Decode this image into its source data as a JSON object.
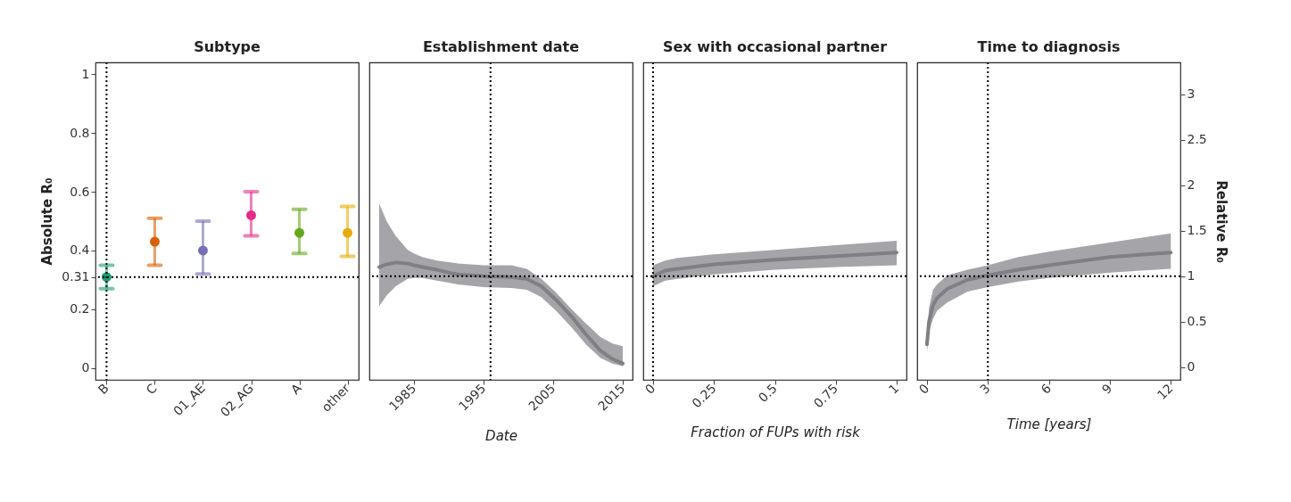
{
  "chart_data": [
    {
      "type": "scatter",
      "title": "Subtype",
      "ylabel": "Absolute R₀",
      "categories": [
        "B",
        "C",
        "01_AE",
        "02_AG",
        "A",
        "other"
      ],
      "values": [
        0.31,
        0.43,
        0.4,
        0.52,
        0.46,
        0.46
      ],
      "errors": [
        [
          0.27,
          0.35
        ],
        [
          0.35,
          0.51
        ],
        [
          0.32,
          0.5
        ],
        [
          0.45,
          0.6
        ],
        [
          0.39,
          0.54
        ],
        [
          0.38,
          0.55
        ]
      ],
      "colors": [
        "#1b9e77",
        "#d95f02",
        "#7570b3",
        "#e7298a",
        "#66a61e",
        "#e6ab02"
      ],
      "ylim": [
        -0.04,
        1.04
      ],
      "yticks": [
        0,
        0.2,
        0.31,
        0.4,
        0.6,
        0.8,
        1
      ],
      "marker": "circle",
      "ref_lines": [
        {
          "axis": "x",
          "value": "B",
          "line_style": "dotted"
        },
        {
          "axis": "y",
          "value": 0.31,
          "line_style": "dotted"
        }
      ]
    },
    {
      "type": "line",
      "title": "Establishment date",
      "xlabel": "Date",
      "x": [
        1980,
        1981.1,
        1982.4,
        1984.1,
        1985,
        1986.2,
        1988.3,
        1990.5,
        1991.3,
        1995,
        1999,
        2001.2,
        2003.3,
        2005.4,
        2007.6,
        2009.7,
        2011.8,
        2013.5,
        2015
      ],
      "series": [
        {
          "color": "#7f7f84",
          "values": [
            1.1,
            1.13,
            1.15,
            1.14,
            1.12,
            1.1,
            1.07,
            1.03,
            1.02,
            1.0,
            0.99,
            0.97,
            0.89,
            0.74,
            0.56,
            0.36,
            0.18,
            0.09,
            0.04
          ],
          "lower": [
            0.67,
            0.79,
            0.89,
            0.97,
            0.98,
            0.98,
            0.95,
            0.92,
            0.91,
            0.88,
            0.87,
            0.85,
            0.77,
            0.62,
            0.44,
            0.25,
            0.1,
            0.04,
            0.01
          ],
          "upper": [
            1.8,
            1.6,
            1.44,
            1.29,
            1.25,
            1.21,
            1.17,
            1.15,
            1.14,
            1.12,
            1.12,
            1.08,
            0.97,
            0.82,
            0.64,
            0.48,
            0.33,
            0.26,
            0.23
          ]
        }
      ],
      "xlim": [
        1978.6,
        2016.4
      ],
      "xticks": [
        1985,
        1995,
        2005,
        2015
      ],
      "ylim": [
        -0.14,
        3.35
      ],
      "yticks": [
        0,
        0.5,
        1,
        1.5,
        2,
        2.5,
        3
      ],
      "tick_labels": "x",
      "line_style": "solid",
      "ref_lines": [
        {
          "axis": "x",
          "value": 1996,
          "line_style": "dotted"
        },
        {
          "axis": "y",
          "value": 1,
          "line_style": "dotted"
        }
      ]
    },
    {
      "type": "line",
      "title": "Sex with occasional partner",
      "xlabel": "Fraction of FUPs with risk",
      "x": [
        0,
        0.05,
        0.1,
        0.25,
        0.5,
        0.75,
        1
      ],
      "series": [
        {
          "color": "#7f7f84",
          "values": [
            1.0,
            1.06,
            1.08,
            1.13,
            1.18,
            1.22,
            1.26
          ],
          "lower": [
            0.89,
            0.95,
            0.97,
            1.02,
            1.07,
            1.1,
            1.12
          ],
          "upper": [
            1.12,
            1.17,
            1.2,
            1.24,
            1.29,
            1.34,
            1.39
          ]
        }
      ],
      "xlim": [
        -0.04,
        1.04
      ],
      "xticks": [
        0,
        0.25,
        0.5,
        0.75,
        1
      ],
      "ylim": [
        -0.14,
        3.35
      ],
      "yticks": [
        0,
        0.5,
        1,
        1.5,
        2,
        2.5,
        3
      ],
      "tick_labels": "x",
      "line_style": "solid",
      "ref_lines": [
        {
          "axis": "x",
          "value": 0,
          "line_style": "dotted"
        },
        {
          "axis": "y",
          "value": 1,
          "line_style": "dotted"
        }
      ]
    },
    {
      "type": "line",
      "title": "Time to diagnosis",
      "xlabel": "Time [years]",
      "y2label": "Relative R₀",
      "x": [
        0,
        0.1,
        0.3,
        0.5,
        1,
        2,
        3,
        4.5,
        6,
        9,
        12
      ],
      "series": [
        {
          "color": "#7f7f84",
          "axis": "y2",
          "values": [
            0.25,
            0.5,
            0.68,
            0.76,
            0.86,
            0.96,
            1.01,
            1.07,
            1.12,
            1.21,
            1.26
          ],
          "lower": [
            0.16,
            0.39,
            0.53,
            0.62,
            0.71,
            0.83,
            0.88,
            0.94,
            0.98,
            1.04,
            1.08
          ],
          "upper": [
            0.32,
            0.65,
            0.85,
            0.91,
            1.01,
            1.07,
            1.12,
            1.21,
            1.27,
            1.37,
            1.47
          ]
        }
      ],
      "xlim": [
        -0.48,
        12.47
      ],
      "xticks": [
        0,
        3,
        6,
        9,
        12
      ],
      "y2lim": [
        -0.14,
        3.35
      ],
      "y2ticks": [
        0,
        0.5,
        1,
        1.5,
        2,
        2.5,
        3
      ],
      "line_style": "solid",
      "ref_lines": [
        {
          "axis": "x",
          "value": 3,
          "line_style": "dotted"
        },
        {
          "axis": "y2",
          "value": 1,
          "line_style": "dotted"
        }
      ]
    }
  ]
}
